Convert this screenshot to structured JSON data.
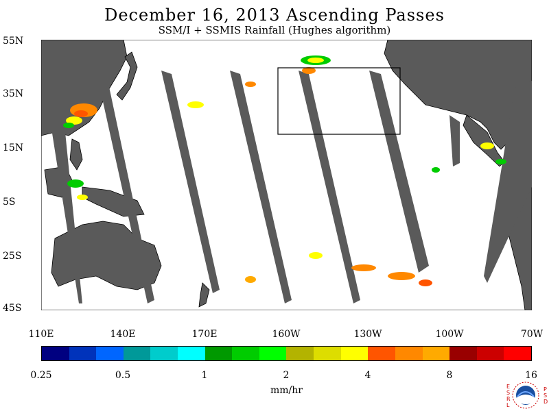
{
  "title": "December 16, 2013  Ascending Passes",
  "subtitle": "SSM/I + SSMIS Rainfall (Hughes algorithm)",
  "latitude_labels": [
    "55N",
    "35N",
    "15N",
    "5S",
    "25S",
    "45S"
  ],
  "longitude_labels": [
    "110E",
    "140E",
    "170E",
    "160W",
    "130W",
    "100W",
    "70W"
  ],
  "colorbar": {
    "colors": [
      "#000080",
      "#0033bb",
      "#0066ff",
      "#009999",
      "#00cccc",
      "#00ffff",
      "#009900",
      "#00cc00",
      "#00ff00",
      "#b3b300",
      "#dddd00",
      "#ffff00",
      "#ff5500",
      "#ff8800",
      "#ffaa00",
      "#990000",
      "#cc0000",
      "#ff0000"
    ],
    "labels": [
      "0.25",
      "0.5",
      "1",
      "2",
      "4",
      "8",
      "16"
    ]
  },
  "units": "mm/hr",
  "logo": {
    "left_text": "ESRL",
    "right_text": "PSD"
  },
  "colors": {
    "land": "#5a5a5a",
    "swath_gap": "#5a5a5a",
    "box": "#000000"
  }
}
